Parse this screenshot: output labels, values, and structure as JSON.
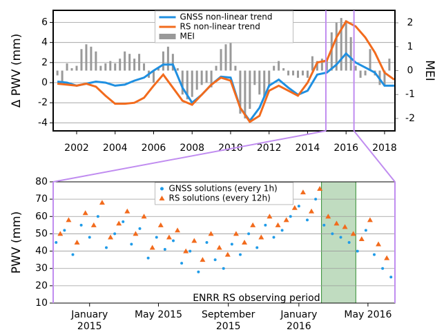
{
  "chart_data": [
    {
      "type": "line",
      "y_label": "Δ PWV (mm)",
      "y2_label": "MEI",
      "xlim": [
        2000.78,
        2018.54
      ],
      "xticks": [
        2002,
        2004,
        2006,
        2008,
        2010,
        2012,
        2014,
        2016,
        2018
      ],
      "ylim": [
        -4.8,
        7.2
      ],
      "yticks": [
        -4,
        -2,
        0,
        2,
        4,
        6
      ],
      "y2lim": [
        -2.52,
        2.52
      ],
      "y2ticks": [
        -2,
        -1,
        0,
        1,
        2
      ],
      "grid": true,
      "legend": "upper center",
      "zoom_markers": [
        2014.95,
        2016.41
      ],
      "zoom_color": "#c08cf0",
      "series": [
        {
          "name": "GNSS non-linear trend",
          "color": "#1f8fe0",
          "x": [
            2001,
            2001.5,
            2002,
            2002.5,
            2003,
            2003.5,
            2004,
            2004.5,
            2005,
            2005.5,
            2006,
            2006.5,
            2007,
            2007.5,
            2008,
            2008.5,
            2009,
            2009.5,
            2010,
            2010.5,
            2011,
            2011.5,
            2012,
            2012.5,
            2013,
            2013.5,
            2014,
            2014.5,
            2015,
            2015.5,
            2016,
            2016.5,
            2017,
            2017.5,
            2018,
            2018.5
          ],
          "values": [
            0.1,
            0,
            -0.3,
            -0.1,
            0.1,
            0,
            -0.3,
            -0.2,
            0.2,
            0.5,
            1.2,
            1.8,
            1.8,
            -0.5,
            -2.0,
            -1.2,
            -0.2,
            0.6,
            0.5,
            -2.5,
            -3.8,
            -2.5,
            -0.3,
            0.3,
            -0.5,
            -1.2,
            -0.8,
            0.8,
            1.0,
            1.8,
            2.9,
            2.0,
            1.5,
            1.0,
            -0.3,
            -0.3
          ]
        },
        {
          "name": "RS non-linear trend",
          "color": "#f26b1d",
          "x": [
            2001,
            2001.5,
            2002,
            2002.5,
            2003,
            2003.5,
            2004,
            2004.5,
            2005,
            2005.5,
            2006,
            2006.5,
            2007,
            2007.5,
            2008,
            2008.5,
            2009,
            2009.5,
            2010,
            2010.5,
            2011,
            2011.5,
            2012,
            2012.5,
            2013,
            2013.5,
            2014,
            2014.5,
            2015,
            2015.5,
            2016,
            2016.5,
            2017,
            2017.5,
            2018,
            2018.5
          ],
          "values": [
            -0.1,
            -0.2,
            -0.3,
            -0.1,
            -0.4,
            -1.3,
            -2.1,
            -2.1,
            -2.0,
            -1.5,
            -0.3,
            0.8,
            -0.5,
            -1.8,
            -2.2,
            -1.2,
            -0.2,
            0.5,
            0.2,
            -2.5,
            -3.9,
            -3.3,
            -0.8,
            -0.3,
            -0.8,
            -1.3,
            0,
            2.0,
            2.2,
            4.5,
            6.1,
            5.6,
            4.5,
            3.0,
            1.0,
            0.3
          ]
        },
        {
          "name": "MEI",
          "color": "#999999",
          "type": "bar",
          "axis": "y2",
          "x": [
            2001,
            2001.25,
            2001.5,
            2001.75,
            2002,
            2002.25,
            2002.5,
            2002.75,
            2003,
            2003.25,
            2003.5,
            2003.75,
            2004,
            2004.25,
            2004.5,
            2004.75,
            2005,
            2005.25,
            2005.5,
            2005.75,
            2006,
            2006.25,
            2006.5,
            2006.75,
            2007,
            2007.25,
            2007.5,
            2007.75,
            2008,
            2008.25,
            2008.5,
            2008.75,
            2009,
            2009.25,
            2009.5,
            2009.75,
            2010,
            2010.25,
            2010.5,
            2010.75,
            2011,
            2011.25,
            2011.5,
            2011.75,
            2012,
            2012.25,
            2012.5,
            2012.75,
            2013,
            2013.25,
            2013.5,
            2013.75,
            2014,
            2014.25,
            2014.5,
            2014.75,
            2015,
            2015.25,
            2015.5,
            2015.75,
            2016,
            2016.25,
            2016.5,
            2016.75,
            2017,
            2017.25,
            2017.5,
            2017.75,
            2018,
            2018.25
          ],
          "values": [
            -0.2,
            -0.5,
            0.3,
            0.1,
            0.2,
            0.9,
            1.1,
            1.0,
            0.8,
            0.2,
            0.3,
            0.4,
            0.3,
            0.5,
            0.8,
            0.7,
            0.5,
            0.7,
            0.3,
            -0.3,
            -0.5,
            0.1,
            0.8,
            1.0,
            0.7,
            0.1,
            -1.0,
            -1.2,
            -1.1,
            -0.8,
            -0.6,
            -0.5,
            -0.7,
            0.2,
            0.9,
            1.1,
            1.3,
            0.2,
            -1.8,
            -2.0,
            -1.6,
            -0.6,
            -1.0,
            -1.1,
            -0.7,
            0.2,
            0.4,
            0.1,
            -0.2,
            -0.2,
            -0.3,
            -0.2,
            -0.3,
            0.6,
            0.4,
            0.5,
            0.4,
            1.6,
            2.0,
            2.2,
            2.1,
            1.4,
            0.2,
            -0.3,
            -0.2,
            0.9,
            -0.2,
            -0.6,
            -0.6,
            0.5
          ]
        }
      ]
    },
    {
      "type": "scatter",
      "y_label": "PWV (mm)",
      "xlim": [
        2014.826,
        2016.459
      ],
      "xticks": [
        {
          "value": 2015.0,
          "label": "January 2015"
        },
        {
          "value": 2015.329,
          "label": "May 2015"
        },
        {
          "value": 2015.663,
          "label": "September 2015"
        },
        {
          "value": 2016.0,
          "label": "January 2016"
        },
        {
          "value": 2016.33,
          "label": "May 2016"
        }
      ],
      "ylim": [
        10,
        80
      ],
      "yticks": [
        10,
        20,
        30,
        40,
        50,
        60,
        70,
        80
      ],
      "grid": true,
      "legend": "upper center",
      "shaded_region": {
        "x": [
          2016.108,
          2016.272
        ],
        "label": "ENRR RS observing period",
        "color": "#2e8b2e"
      },
      "series": [
        {
          "name": "GNSS solutions (every 1h)",
          "color": "#1f9be8",
          "marker": "circle",
          "x": [
            2014.84,
            2014.88,
            2014.92,
            2014.96,
            2015.0,
            2015.04,
            2015.08,
            2015.12,
            2015.16,
            2015.2,
            2015.24,
            2015.28,
            2015.32,
            2015.36,
            2015.4,
            2015.44,
            2015.48,
            2015.52,
            2015.56,
            2015.6,
            2015.64,
            2015.68,
            2015.72,
            2015.76,
            2015.8,
            2015.84,
            2015.88,
            2015.92,
            2015.96,
            2016.0,
            2016.04,
            2016.08,
            2016.12,
            2016.16,
            2016.2,
            2016.24,
            2016.28,
            2016.32,
            2016.36,
            2016.4,
            2016.44
          ],
          "values": [
            45,
            52,
            38,
            55,
            48,
            60,
            42,
            50,
            57,
            44,
            53,
            36,
            48,
            41,
            46,
            33,
            40,
            28,
            45,
            35,
            30,
            44,
            38,
            50,
            42,
            55,
            48,
            52,
            60,
            66,
            58,
            70,
            55,
            50,
            48,
            45,
            40,
            52,
            38,
            30,
            25
          ]
        },
        {
          "name": "RS solutions (every 12h)",
          "color": "#f26b1d",
          "marker": "triangle",
          "x": [
            2014.86,
            2014.9,
            2014.94,
            2014.98,
            2015.02,
            2015.06,
            2015.1,
            2015.14,
            2015.18,
            2015.22,
            2015.26,
            2015.3,
            2015.34,
            2015.38,
            2015.42,
            2015.46,
            2015.5,
            2015.54,
            2015.58,
            2015.62,
            2015.66,
            2015.7,
            2015.74,
            2015.78,
            2015.82,
            2015.86,
            2015.9,
            2015.94,
            2015.98,
            2016.02,
            2016.06,
            2016.1,
            2016.14,
            2016.18,
            2016.22,
            2016.26,
            2016.3,
            2016.34,
            2016.38,
            2016.42
          ],
          "values": [
            50,
            58,
            45,
            62,
            55,
            68,
            48,
            56,
            63,
            50,
            60,
            42,
            55,
            48,
            52,
            40,
            46,
            35,
            50,
            42,
            38,
            50,
            45,
            55,
            48,
            60,
            55,
            58,
            65,
            74,
            63,
            76,
            60,
            56,
            54,
            50,
            47,
            58,
            44,
            36
          ]
        }
      ]
    }
  ]
}
